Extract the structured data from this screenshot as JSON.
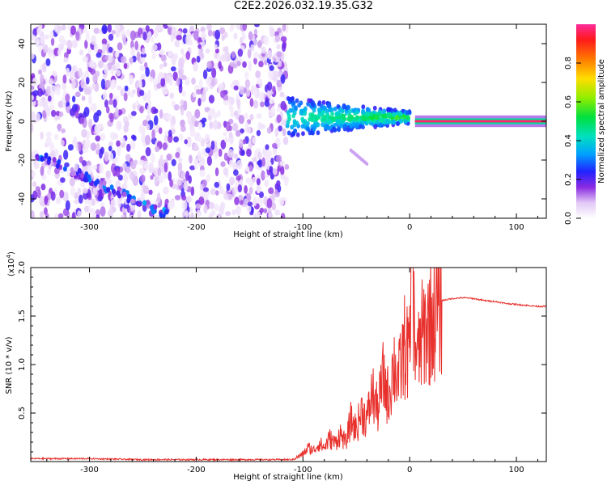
{
  "title": "C2E2.2026.032.19.35.G32",
  "colors": {
    "axis": "#000000",
    "snr_line": "#e8302c",
    "background": "#ffffff"
  },
  "chart_data": [
    {
      "type": "heatmap",
      "name": "spectrogram",
      "xlabel": "Height of straight line (km)",
      "ylabel": "Frequency (Hz)",
      "xlim": [
        -355,
        128
      ],
      "ylim": [
        -50,
        50
      ],
      "xticks": [
        -300,
        -200,
        -100,
        0,
        100
      ],
      "yticks": [
        -40,
        -20,
        0,
        20,
        40
      ],
      "features": [
        {
          "label": "diffuse noise field",
          "x": [
            -355,
            -115
          ],
          "y": [
            -50,
            50
          ],
          "amplitude": [
            0.0,
            0.2
          ]
        },
        {
          "label": "rising chirp",
          "x": [
            -350,
            -220
          ],
          "y_start": -17,
          "y_end": -50,
          "amplitude": [
            0.1,
            0.35
          ]
        },
        {
          "label": "post-entry band",
          "x": [
            -115,
            0
          ],
          "y_center": 2,
          "y_spread": 10,
          "amplitude": [
            0.2,
            0.55
          ]
        },
        {
          "label": "secondary trace",
          "x": [
            -55,
            -40
          ],
          "y": [
            -22,
            -15
          ],
          "amplitude": [
            0.05,
            0.15
          ]
        },
        {
          "label": "steady carrier",
          "x": [
            5,
            128
          ],
          "y": 0,
          "amplitude": 0.97
        }
      ],
      "colorbar": {
        "label": "Normalized spectral amplitude",
        "range": [
          0,
          1
        ],
        "ticks": [
          0.0,
          0.2,
          0.4,
          0.6,
          0.8
        ],
        "tick_labels": [
          "0.0",
          "0.2",
          "0.4",
          "0.6",
          "0.8"
        ]
      }
    },
    {
      "type": "line",
      "name": "snr",
      "xlabel": "Height of straight line (km)",
      "ylabel": "SNR (10 * v/v)",
      "y_multiplier": "(x10",
      "y_multiplier_exp": "4",
      "y_multiplier_close": ")",
      "xlim": [
        -355,
        128
      ],
      "ylim": [
        0,
        2.0
      ],
      "xticks": [
        -300,
        -200,
        -100,
        0,
        100
      ],
      "yticks": [
        0.5,
        1.0,
        1.5,
        2.0
      ],
      "ytick_labels": [
        "0.5",
        "1.0",
        "1.5",
        "2.0"
      ],
      "series": [
        {
          "name": "SNR",
          "x": [
            -355,
            -300,
            -250,
            -200,
            -150,
            -110,
            -100,
            -95,
            -90,
            -85,
            -80,
            -75,
            -70,
            -65,
            -60,
            -55,
            -50,
            -45,
            -40,
            -35,
            -30,
            -25,
            -20,
            -15,
            -10,
            -5,
            0,
            2,
            5,
            8,
            10,
            15,
            20,
            25,
            30,
            40,
            50,
            60,
            70,
            80,
            90,
            100,
            110,
            120,
            128
          ],
          "values": [
            0.03,
            0.03,
            0.02,
            0.02,
            0.02,
            0.02,
            0.08,
            0.15,
            0.12,
            0.2,
            0.15,
            0.25,
            0.2,
            0.3,
            0.2,
            0.45,
            0.35,
            0.55,
            0.45,
            0.75,
            0.55,
            0.9,
            0.7,
            1.05,
            0.9,
            1.25,
            1.15,
            2.0,
            1.3,
            1.1,
            1.3,
            1.45,
            1.55,
            1.62,
            1.66,
            1.68,
            1.69,
            1.68,
            1.66,
            1.65,
            1.63,
            1.62,
            1.61,
            1.6,
            1.6
          ]
        }
      ],
      "noise_region": [
        -110,
        30
      ],
      "noise_amplitude": 0.12
    }
  ]
}
